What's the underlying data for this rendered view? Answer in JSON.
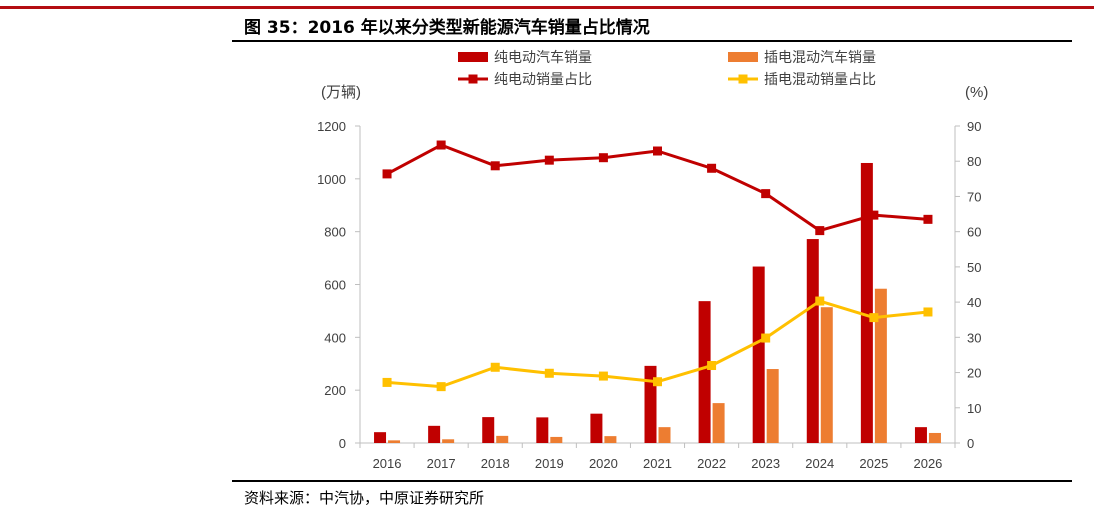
{
  "figure": {
    "title": "图 35：2016 年以来分类型新能源汽车销量占比情况",
    "source": "资料来源：中汽协，中原证券研究所"
  },
  "colors": {
    "bev_bar": "#c00000",
    "phev_bar": "#ed7d31",
    "bev_line": "#c00000",
    "phev_line": "#ffc000",
    "header_rule": "#b40d12",
    "axis": "#bfbfbf"
  },
  "chart_data": {
    "type": "bar",
    "categories": [
      "2016",
      "2017",
      "2018",
      "2019",
      "2020",
      "2021",
      "2022",
      "2023",
      "2024",
      "2025",
      "2026"
    ],
    "series": [
      {
        "name": "纯电动汽车销量",
        "type": "bar",
        "axis": "left",
        "values": [
          41,
          65,
          98,
          97,
          111,
          292,
          537,
          668,
          772,
          1060,
          60
        ]
      },
      {
        "name": "插电混动汽车销量",
        "type": "bar",
        "axis": "left",
        "values": [
          10,
          14,
          27,
          23,
          26,
          60,
          151,
          280,
          514,
          584,
          38
        ]
      },
      {
        "name": "纯电动销量占比",
        "type": "line",
        "axis": "right",
        "values": [
          76.4,
          84.6,
          78.7,
          80.3,
          81.0,
          82.9,
          78.0,
          70.8,
          60.3,
          64.7,
          63.5
        ]
      },
      {
        "name": "插电混动销量占比",
        "type": "line",
        "axis": "right",
        "values": [
          17.2,
          16.0,
          21.5,
          19.8,
          19.0,
          17.4,
          22.0,
          29.8,
          40.3,
          35.6,
          37.2
        ]
      }
    ],
    "y_left": {
      "label": "(万辆)",
      "range": [
        0,
        1200
      ],
      "ticks": [
        "0",
        "200",
        "400",
        "600",
        "800",
        "1000",
        "1200"
      ]
    },
    "y_right": {
      "label": "(%)",
      "range": [
        0,
        90
      ],
      "ticks": [
        "0",
        "10",
        "20",
        "30",
        "40",
        "50",
        "60",
        "70",
        "80",
        "90"
      ]
    },
    "legend_position": "top",
    "grid": false
  }
}
